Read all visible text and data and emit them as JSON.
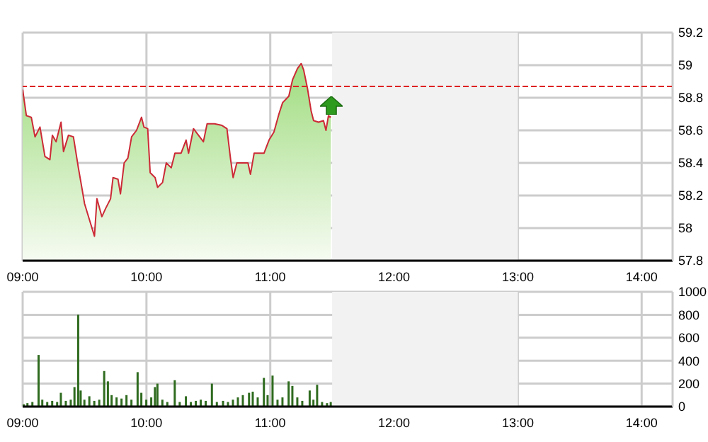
{
  "chart_data": [
    {
      "type": "area",
      "xlim": [
        9,
        14.25
      ],
      "xticks": [
        {
          "value": 9,
          "label": "09:00"
        },
        {
          "value": 10,
          "label": "10:00"
        },
        {
          "value": 11,
          "label": "11:00"
        },
        {
          "value": 12,
          "label": "12:00"
        },
        {
          "value": 13,
          "label": "13:00"
        },
        {
          "value": 14,
          "label": "14:00"
        }
      ],
      "ylim": [
        57.8,
        59.2
      ],
      "yticks": [
        57.8,
        58,
        58.2,
        58.4,
        58.6,
        58.8,
        59,
        59.2
      ],
      "grid": true,
      "series": [
        {
          "color": "#cc2a36",
          "x": [
            9.0,
            9.03,
            9.07,
            9.1,
            9.14,
            9.18,
            9.22,
            9.24,
            9.27,
            9.31,
            9.33,
            9.37,
            9.41,
            9.45,
            9.48,
            9.5,
            9.54,
            9.58,
            9.6,
            9.64,
            9.67,
            9.71,
            9.73,
            9.77,
            9.79,
            9.82,
            9.85,
            9.88,
            9.92,
            9.96,
            9.98,
            10.01,
            10.03,
            10.07,
            10.09,
            10.13,
            10.16,
            10.2,
            10.23,
            10.28,
            10.32,
            10.34,
            10.38,
            10.42,
            10.46,
            10.49,
            10.55,
            10.61,
            10.65,
            10.68,
            10.7,
            10.73,
            10.78,
            10.82,
            10.84,
            10.87,
            10.91,
            10.95,
            10.99,
            11.03,
            11.07,
            11.1,
            11.15,
            11.18,
            11.22,
            11.25,
            11.27,
            11.3,
            11.33,
            11.35,
            11.39,
            11.43,
            11.45,
            11.47,
            11.49
          ],
          "values": [
            58.85,
            58.69,
            58.68,
            58.56,
            58.62,
            58.44,
            58.42,
            58.57,
            58.53,
            58.65,
            58.47,
            58.57,
            58.56,
            58.37,
            58.24,
            58.15,
            58.05,
            57.95,
            58.18,
            58.07,
            58.12,
            58.18,
            58.31,
            58.3,
            58.21,
            58.4,
            58.43,
            58.56,
            58.6,
            58.68,
            58.62,
            58.61,
            58.34,
            58.31,
            58.25,
            58.28,
            58.4,
            58.37,
            58.46,
            58.46,
            58.54,
            58.46,
            58.61,
            58.57,
            58.53,
            58.64,
            58.64,
            58.63,
            58.61,
            58.42,
            58.31,
            58.4,
            58.4,
            58.4,
            58.33,
            58.46,
            58.46,
            58.46,
            58.54,
            58.59,
            58.7,
            58.77,
            58.81,
            58.91,
            58.98,
            59.01,
            58.97,
            58.86,
            58.72,
            58.66,
            58.65,
            58.66,
            58.6,
            58.69,
            58.68
          ]
        }
      ],
      "ref_lines": [
        {
          "axis": "y",
          "value": 58.87,
          "color": "#dd2222",
          "line_style": "dashed"
        }
      ],
      "bands": [
        {
          "axis": "x",
          "from": 11.5,
          "to": 13,
          "color": "#f2f2f2"
        }
      ]
    },
    {
      "type": "bar",
      "xlim": [
        9,
        14.25
      ],
      "xticks": [
        {
          "value": 9,
          "label": "09:00"
        },
        {
          "value": 10,
          "label": "10:00"
        },
        {
          "value": 11,
          "label": "11:00"
        },
        {
          "value": 12,
          "label": "12:00"
        },
        {
          "value": 13,
          "label": "13:00"
        },
        {
          "value": 14,
          "label": "14:00"
        }
      ],
      "ylim": [
        0,
        1000
      ],
      "yticks": [
        0,
        200,
        400,
        600,
        800,
        1000
      ],
      "grid": true,
      "series": [
        {
          "color": "#2f6b1f",
          "x": [
            9.01,
            9.04,
            9.08,
            9.13,
            9.16,
            9.2,
            9.24,
            9.28,
            9.31,
            9.35,
            9.39,
            9.42,
            9.45,
            9.47,
            9.5,
            9.54,
            9.58,
            9.62,
            9.66,
            9.69,
            9.72,
            9.76,
            9.8,
            9.84,
            9.88,
            9.93,
            9.96,
            10.0,
            10.04,
            10.07,
            10.09,
            10.13,
            10.17,
            10.23,
            10.27,
            10.32,
            10.36,
            10.4,
            10.44,
            10.48,
            10.53,
            10.57,
            10.62,
            10.66,
            10.7,
            10.74,
            10.78,
            10.83,
            10.86,
            10.9,
            10.95,
            10.98,
            11.02,
            11.06,
            11.1,
            11.15,
            11.18,
            11.22,
            11.26,
            11.32,
            11.35,
            11.38,
            11.42,
            11.46,
            11.49
          ],
          "values": [
            20,
            30,
            40,
            450,
            60,
            40,
            50,
            40,
            120,
            50,
            60,
            170,
            800,
            140,
            60,
            90,
            50,
            60,
            310,
            220,
            100,
            80,
            70,
            100,
            60,
            300,
            120,
            60,
            80,
            170,
            200,
            60,
            40,
            230,
            40,
            90,
            40,
            50,
            60,
            50,
            200,
            40,
            50,
            40,
            60,
            80,
            100,
            120,
            130,
            80,
            250,
            100,
            270,
            60,
            80,
            220,
            180,
            80,
            50,
            140,
            60,
            190,
            40,
            30,
            40
          ]
        }
      ],
      "bands": [
        {
          "axis": "x",
          "from": 11.5,
          "to": 13,
          "color": "#f2f2f2"
        }
      ]
    }
  ]
}
